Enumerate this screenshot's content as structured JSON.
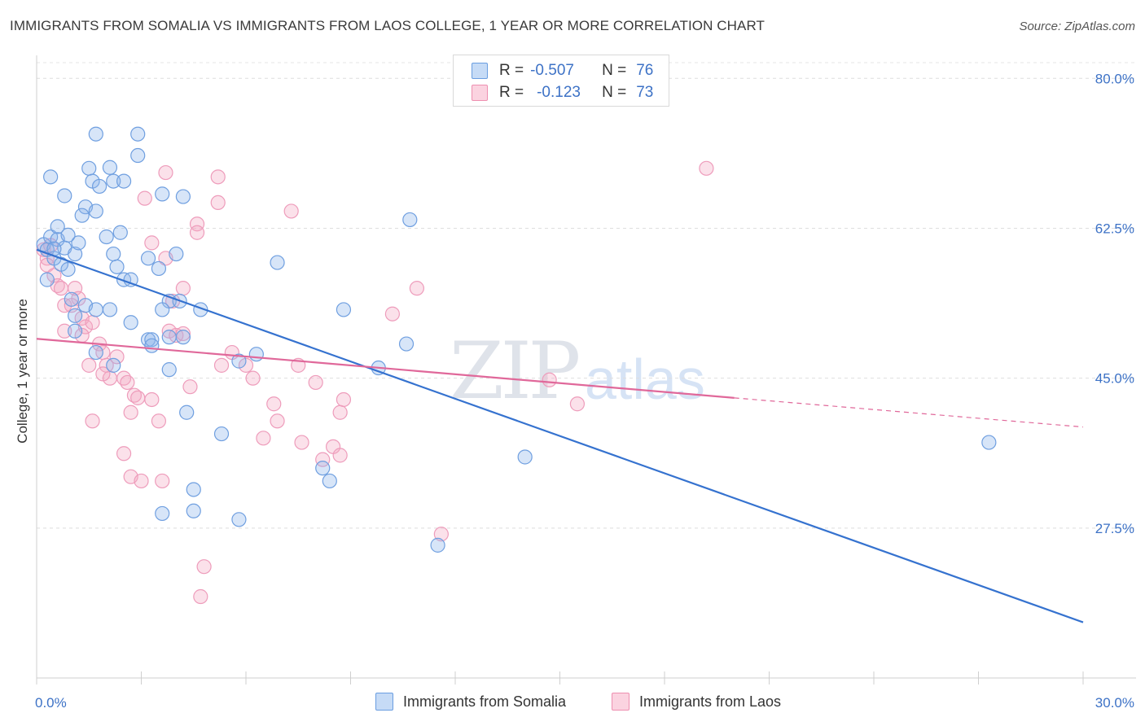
{
  "header": {
    "title": "IMMIGRANTS FROM SOMALIA VS IMMIGRANTS FROM LAOS COLLEGE, 1 YEAR OR MORE CORRELATION CHART",
    "source": "Source: ZipAtlas.com"
  },
  "legend": {
    "somalia": {
      "r_label": "R =",
      "r_value": "-0.507",
      "n_label": "N =",
      "n_value": "76"
    },
    "laos": {
      "r_label": "R =",
      "r_value": "-0.123",
      "n_label": "N =",
      "n_value": "73"
    }
  },
  "watermark": {
    "zip": "ZIP",
    "atlas": "atlas"
  },
  "chart_data": {
    "type": "scatter",
    "title": "IMMIGRANTS FROM SOMALIA VS IMMIGRANTS FROM LAOS COLLEGE, 1 YEAR OR MORE CORRELATION CHART",
    "xlabel": "",
    "ylabel": "College, 1 year or more",
    "xlim": [
      0,
      30
    ],
    "ylim": [
      10,
      82.5
    ],
    "x_tick_labels": [
      "0.0%",
      "30.0%"
    ],
    "y_ticks": [
      27.5,
      45.0,
      62.5,
      80.0
    ],
    "y_tick_labels": [
      "27.5%",
      "45.0%",
      "62.5%",
      "80.0%"
    ],
    "colors": {
      "somalia": "#6a9de0",
      "laos": "#ee8fb0",
      "somalia_line": "#3572cf",
      "laos_line": "#e0689a"
    },
    "series": [
      {
        "name": "Immigrants from Somalia",
        "r": -0.507,
        "n": 76,
        "trend": {
          "x0": 0.0,
          "y0": 60.0,
          "x1": 30.0,
          "y1": 16.5
        },
        "points": [
          [
            0.2,
            60.6
          ],
          [
            0.3,
            60.0
          ],
          [
            0.4,
            61.5
          ],
          [
            0.5,
            59.0
          ],
          [
            0.6,
            61.2
          ],
          [
            0.8,
            60.2
          ],
          [
            0.3,
            56.5
          ],
          [
            0.5,
            60.1
          ],
          [
            0.7,
            58.3
          ],
          [
            0.9,
            57.7
          ],
          [
            1.1,
            59.5
          ],
          [
            1.2,
            60.8
          ],
          [
            0.4,
            68.5
          ],
          [
            0.8,
            66.3
          ],
          [
            0.6,
            62.7
          ],
          [
            0.9,
            61.7
          ],
          [
            1.4,
            65.0
          ],
          [
            1.5,
            69.5
          ],
          [
            1.6,
            68.0
          ],
          [
            1.3,
            64.0
          ],
          [
            1.7,
            64.5
          ],
          [
            1.8,
            67.4
          ],
          [
            1.7,
            73.5
          ],
          [
            2.1,
            69.6
          ],
          [
            2.2,
            68.0
          ],
          [
            2.9,
            73.5
          ],
          [
            2.9,
            71.0
          ],
          [
            2.5,
            68.0
          ],
          [
            3.6,
            66.5
          ],
          [
            4.2,
            66.2
          ],
          [
            2.4,
            62.0
          ],
          [
            2.2,
            59.5
          ],
          [
            2.3,
            58.0
          ],
          [
            2.5,
            56.5
          ],
          [
            2.7,
            56.5
          ],
          [
            3.2,
            59.0
          ],
          [
            3.5,
            57.8
          ],
          [
            4.0,
            59.5
          ],
          [
            3.8,
            54.0
          ],
          [
            3.6,
            53.0
          ],
          [
            4.1,
            54.0
          ],
          [
            2.1,
            53.0
          ],
          [
            1.4,
            53.5
          ],
          [
            1.7,
            53.0
          ],
          [
            1.0,
            54.2
          ],
          [
            1.1,
            52.3
          ],
          [
            1.1,
            50.5
          ],
          [
            1.7,
            48.0
          ],
          [
            2.7,
            51.5
          ],
          [
            3.2,
            49.5
          ],
          [
            3.3,
            49.5
          ],
          [
            3.3,
            48.8
          ],
          [
            3.8,
            49.8
          ],
          [
            4.2,
            49.8
          ],
          [
            4.7,
            53.0
          ],
          [
            3.8,
            46.0
          ],
          [
            4.3,
            41.0
          ],
          [
            5.8,
            47.0
          ],
          [
            6.3,
            47.8
          ],
          [
            5.3,
            38.5
          ],
          [
            6.9,
            58.5
          ],
          [
            8.8,
            53.0
          ],
          [
            10.6,
            49.0
          ],
          [
            10.7,
            63.5
          ],
          [
            9.8,
            46.2
          ],
          [
            11.5,
            25.5
          ],
          [
            14.0,
            35.8
          ],
          [
            27.3,
            37.5
          ],
          [
            4.5,
            32.0
          ],
          [
            4.5,
            29.5
          ],
          [
            3.6,
            29.2
          ],
          [
            5.8,
            28.5
          ],
          [
            8.2,
            34.5
          ],
          [
            8.4,
            33.0
          ],
          [
            2.2,
            46.5
          ],
          [
            2.0,
            61.5
          ]
        ]
      },
      {
        "name": "Immigrants from Laos",
        "r": -0.123,
        "n": 73,
        "trend": {
          "x0": 0.0,
          "y0": 49.6,
          "x1": 20.0,
          "y1": 42.7,
          "dash_to_x": 30.0,
          "dash_to_y": 39.3
        },
        "points": [
          [
            0.2,
            60.0
          ],
          [
            0.3,
            59.0
          ],
          [
            0.4,
            60.5
          ],
          [
            0.3,
            58.2
          ],
          [
            0.5,
            57.0
          ],
          [
            0.6,
            55.8
          ],
          [
            0.7,
            55.5
          ],
          [
            0.8,
            53.5
          ],
          [
            1.1,
            55.5
          ],
          [
            1.2,
            54.3
          ],
          [
            1.3,
            52.0
          ],
          [
            1.0,
            53.5
          ],
          [
            1.4,
            51.0
          ],
          [
            1.6,
            51.5
          ],
          [
            0.8,
            50.5
          ],
          [
            1.3,
            50.0
          ],
          [
            1.8,
            49.0
          ],
          [
            1.5,
            46.5
          ],
          [
            1.9,
            48.0
          ],
          [
            2.0,
            46.5
          ],
          [
            2.1,
            45.0
          ],
          [
            2.3,
            47.5
          ],
          [
            2.5,
            45.0
          ],
          [
            2.6,
            44.5
          ],
          [
            2.7,
            41.0
          ],
          [
            2.8,
            43.0
          ],
          [
            2.9,
            42.7
          ],
          [
            2.7,
            33.5
          ],
          [
            3.0,
            33.0
          ],
          [
            3.3,
            42.5
          ],
          [
            3.5,
            40.0
          ],
          [
            3.6,
            33.0
          ],
          [
            3.8,
            50.5
          ],
          [
            4.0,
            50.0
          ],
          [
            4.2,
            50.2
          ],
          [
            4.4,
            44.0
          ],
          [
            4.6,
            63.0
          ],
          [
            4.6,
            62.0
          ],
          [
            5.2,
            65.5
          ],
          [
            5.2,
            68.5
          ],
          [
            5.3,
            46.5
          ],
          [
            5.6,
            48.0
          ],
          [
            6.0,
            46.5
          ],
          [
            6.2,
            45.0
          ],
          [
            6.5,
            38.0
          ],
          [
            6.8,
            42.0
          ],
          [
            6.9,
            40.0
          ],
          [
            7.3,
            64.5
          ],
          [
            7.5,
            46.5
          ],
          [
            7.6,
            37.5
          ],
          [
            8.0,
            44.5
          ],
          [
            8.2,
            35.5
          ],
          [
            8.5,
            37.0
          ],
          [
            8.7,
            36.0
          ],
          [
            8.7,
            41.0
          ],
          [
            8.8,
            42.5
          ],
          [
            10.2,
            52.5
          ],
          [
            10.9,
            55.5
          ],
          [
            11.6,
            26.8
          ],
          [
            14.7,
            44.8
          ],
          [
            15.5,
            42.0
          ],
          [
            19.2,
            69.5
          ],
          [
            3.7,
            69.0
          ],
          [
            3.1,
            66.0
          ],
          [
            3.3,
            60.8
          ],
          [
            3.7,
            59.0
          ],
          [
            3.9,
            54.0
          ],
          [
            4.2,
            55.5
          ],
          [
            1.6,
            40.0
          ],
          [
            2.5,
            36.2
          ],
          [
            4.8,
            23.0
          ],
          [
            4.7,
            19.5
          ],
          [
            1.9,
            45.5
          ]
        ]
      }
    ]
  }
}
